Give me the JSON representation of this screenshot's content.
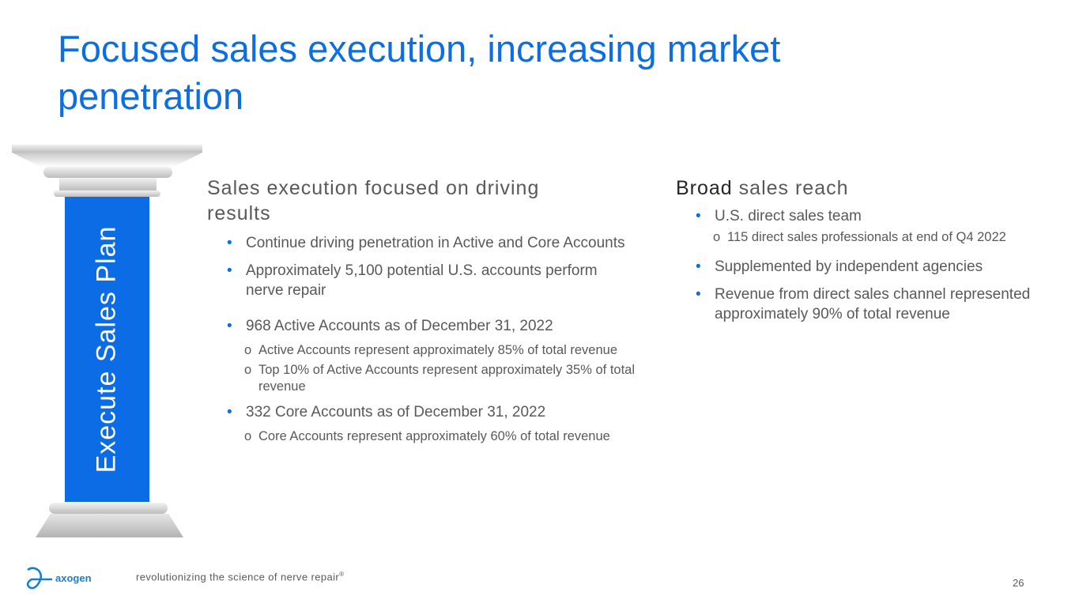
{
  "title": "Focused sales execution, increasing market penetration",
  "pillar": {
    "label": "Execute Sales Plan"
  },
  "left": {
    "heading": "Sales execution focused on driving results",
    "bullets": [
      {
        "text": "Continue driving penetration in Active and Core Accounts"
      },
      {
        "text": "Approximately 5,100 potential U.S. accounts perform nerve repair"
      },
      {
        "text": "968 Active Accounts as of December 31, 2022",
        "sub": [
          "Active Accounts represent approximately 85% of total revenue",
          "Top 10% of Active Accounts represent approximately 35% of total revenue"
        ]
      },
      {
        "text": "332 Core Accounts as of December 31, 2022",
        "sub": [
          "Core Accounts represent approximately 60% of total revenue"
        ]
      }
    ]
  },
  "right": {
    "heading_strong": "Broad",
    "heading_rest": " sales reach",
    "bullets": [
      {
        "text": "U.S. direct sales team",
        "sub": [
          "115 direct sales professionals at end of Q4 2022"
        ]
      },
      {
        "text": "Supplemented by independent agencies"
      },
      {
        "text": "Revenue from direct sales channel represented approximately 90% of total revenue"
      }
    ]
  },
  "footer": {
    "logo": "axogen",
    "tagline": "revolutionizing the science of nerve repair",
    "reg": "®",
    "page": "26"
  }
}
